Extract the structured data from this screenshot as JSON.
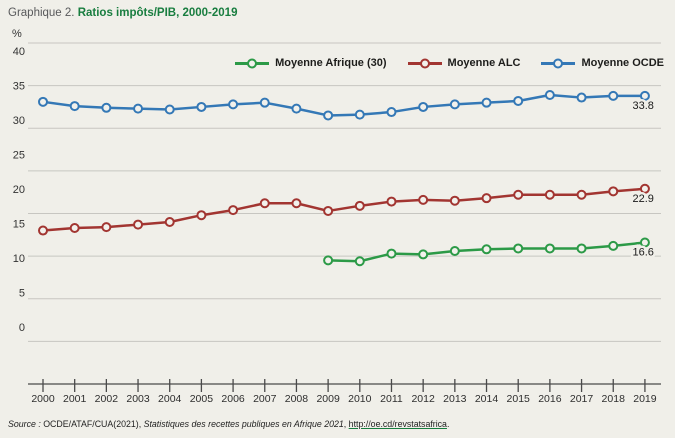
{
  "colors": {
    "background": "#f0efe9",
    "gridline": "#c7c6c1",
    "axis": "#4a4a4a",
    "title_green": "#187d3f",
    "title_gray": "#58595b"
  },
  "title": {
    "prefix": "Graphique 2. ",
    "main": "Ratios impôts/PIB, 2000-2019"
  },
  "y_unit": "%",
  "chart_data": {
    "type": "line",
    "title": "Ratios impôts/PIB, 2000-2019",
    "x": [
      "2000",
      "2001",
      "2002",
      "2003",
      "2004",
      "2005",
      "2006",
      "2007",
      "2008",
      "2009",
      "2010",
      "2011",
      "2012",
      "2013",
      "2014",
      "2015",
      "2016",
      "2017",
      "2018",
      "2019"
    ],
    "ylim": [
      0,
      40
    ],
    "ytick_step": 5,
    "grid": true,
    "legend_position": "top-right",
    "series": [
      {
        "name": "Moyenne Afrique (30)",
        "color": "#2c9a47",
        "end_label": "16.6",
        "values": [
          null,
          null,
          null,
          null,
          null,
          null,
          null,
          null,
          null,
          14.5,
          14.4,
          15.3,
          15.2,
          15.6,
          15.8,
          15.9,
          15.9,
          15.9,
          16.2,
          16.6
        ]
      },
      {
        "name": "Moyenne ALC",
        "color": "#a23531",
        "end_label": "22.9",
        "values": [
          18.0,
          18.3,
          18.4,
          18.7,
          19.0,
          19.8,
          20.4,
          21.2,
          21.2,
          20.3,
          20.9,
          21.4,
          21.6,
          21.5,
          21.8,
          22.2,
          22.2,
          22.2,
          22.6,
          22.9
        ]
      },
      {
        "name": "Moyenne OCDE",
        "color": "#3478b6",
        "end_label": "33.8",
        "values": [
          33.1,
          32.6,
          32.4,
          32.3,
          32.2,
          32.5,
          32.8,
          33.0,
          32.3,
          31.5,
          31.6,
          31.9,
          32.5,
          32.8,
          33.0,
          33.2,
          33.9,
          33.6,
          33.8,
          33.8
        ]
      }
    ]
  },
  "source": {
    "prefix": "Source : ",
    "org": "OCDE/ATAF/CUA(2021), ",
    "work": "Statistiques des recettes publiques en Afrique 2021",
    "sep": ", ",
    "link": "http://oe.cd/revstatsafrica",
    "period": "."
  }
}
